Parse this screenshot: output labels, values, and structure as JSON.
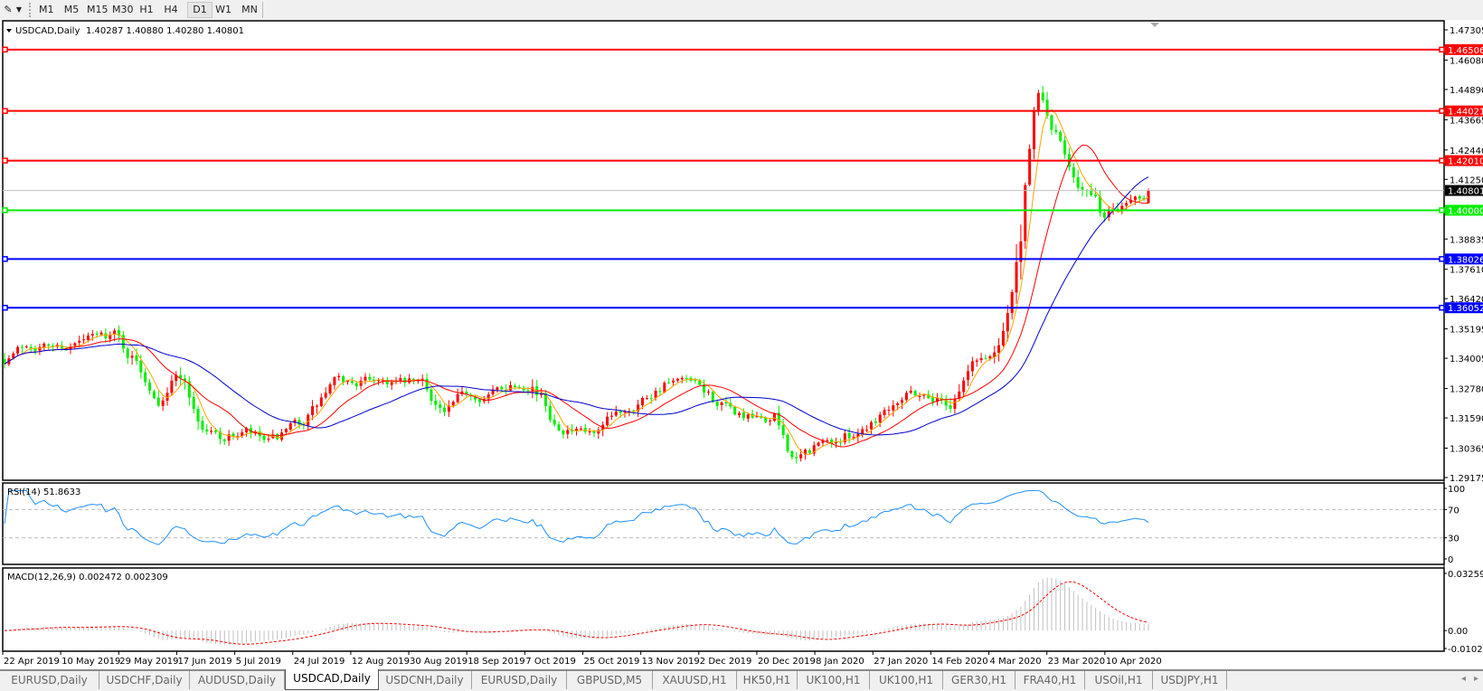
{
  "toolbar": {
    "icon": "drawing-tools-icon",
    "timeframes": [
      "M1",
      "M5",
      "M15",
      "M30",
      "H1",
      "H4",
      "D1",
      "W1",
      "MN"
    ],
    "active_timeframe": "D1"
  },
  "chart_header": {
    "symbol": "USDCAD,Daily",
    "ohlc": "1.40287 1.40880 1.40280 1.40801"
  },
  "rsi_header": "RSI(14) 51.8633",
  "macd_header": "MACD(12,26,9) 0.002472 0.002309",
  "tabs": [
    "EURUSD,Daily",
    "USDCHF,Daily",
    "AUDUSD,Daily",
    "USDCAD,Daily",
    "USDCNH,Daily",
    "EURUSD,Daily",
    "GBPUSD,M5",
    "XAUUSD,H1",
    "HK50,H1",
    "UK100,H1",
    "UK100,H1",
    "GER30,H1",
    "FRA40,H1",
    "USOil,H1",
    "USDJPY,H1"
  ],
  "active_tab": "USDCAD,Daily",
  "colors": {
    "bull_candle": "#ff0000",
    "bear_candle": "#00ee00",
    "ma_fast": "#ffa500",
    "ma_mid": "#ff0000",
    "ma_slow": "#0000cc",
    "rsi_line": "#1e90ff",
    "macd_hist": "#c0c0c0",
    "macd_signal": "#ff0000",
    "current_price": "#000000"
  },
  "chart_data": {
    "type": "candlestick",
    "symbol": "USDCAD",
    "timeframe": "Daily",
    "last_bar": {
      "open": 1.40287,
      "high": 1.4088,
      "low": 1.4028,
      "close": 1.40801
    },
    "weekly_close_approx": [
      {
        "week": "2019-04-22",
        "close": 1.34
      },
      {
        "week": "2019-04-29",
        "close": 1.346
      },
      {
        "week": "2019-05-06",
        "close": 1.345
      },
      {
        "week": "2019-05-13",
        "close": 1.345
      },
      {
        "week": "2019-05-20",
        "close": 1.348
      },
      {
        "week": "2019-05-27",
        "close": 1.35
      },
      {
        "week": "2019-06-03",
        "close": 1.338
      },
      {
        "week": "2019-06-10",
        "close": 1.325
      },
      {
        "week": "2019-06-17",
        "close": 1.335
      },
      {
        "week": "2019-06-24",
        "close": 1.312
      },
      {
        "week": "2019-07-01",
        "close": 1.308
      },
      {
        "week": "2019-07-08",
        "close": 1.31
      },
      {
        "week": "2019-07-15",
        "close": 1.305
      },
      {
        "week": "2019-07-22",
        "close": 1.31
      },
      {
        "week": "2019-07-29",
        "close": 1.318
      },
      {
        "week": "2019-08-05",
        "close": 1.33
      },
      {
        "week": "2019-08-12",
        "close": 1.33
      },
      {
        "week": "2019-08-19",
        "close": 1.332
      },
      {
        "week": "2019-08-26",
        "close": 1.33
      },
      {
        "week": "2019-09-02",
        "close": 1.33
      },
      {
        "week": "2019-09-09",
        "close": 1.318
      },
      {
        "week": "2019-09-16",
        "close": 1.325
      },
      {
        "week": "2019-09-23",
        "close": 1.325
      },
      {
        "week": "2019-09-30",
        "close": 1.33
      },
      {
        "week": "2019-10-07",
        "close": 1.33
      },
      {
        "week": "2019-10-14",
        "close": 1.315
      },
      {
        "week": "2019-10-21",
        "close": 1.31
      },
      {
        "week": "2019-10-28",
        "close": 1.308
      },
      {
        "week": "2019-11-04",
        "close": 1.318
      },
      {
        "week": "2019-11-11",
        "close": 1.324
      },
      {
        "week": "2019-11-18",
        "close": 1.33
      },
      {
        "week": "2019-11-25",
        "close": 1.33
      },
      {
        "week": "2019-12-02",
        "close": 1.325
      },
      {
        "week": "2019-12-09",
        "close": 1.318
      },
      {
        "week": "2019-12-16",
        "close": 1.315
      },
      {
        "week": "2019-12-23",
        "close": 1.315
      },
      {
        "week": "2019-12-30",
        "close": 1.298
      },
      {
        "week": "2020-01-06",
        "close": 1.305
      },
      {
        "week": "2020-01-13",
        "close": 1.307
      },
      {
        "week": "2020-01-20",
        "close": 1.312
      },
      {
        "week": "2020-01-27",
        "close": 1.32
      },
      {
        "week": "2020-02-03",
        "close": 1.328
      },
      {
        "week": "2020-02-10",
        "close": 1.325
      },
      {
        "week": "2020-02-17",
        "close": 1.322
      },
      {
        "week": "2020-02-24",
        "close": 1.338
      },
      {
        "week": "2020-03-02",
        "close": 1.342
      },
      {
        "week": "2020-03-09",
        "close": 1.375
      },
      {
        "week": "2020-03-16",
        "close": 1.445
      },
      {
        "week": "2020-03-23",
        "close": 1.425
      },
      {
        "week": "2020-03-30",
        "close": 1.41
      },
      {
        "week": "2020-04-06",
        "close": 1.397
      },
      {
        "week": "2020-04-13",
        "close": 1.405
      },
      {
        "week": "2020-04-20",
        "close": 1.408
      }
    ],
    "price_axis": {
      "min": 1.29175,
      "max": 1.47305,
      "ticks": [
        "1.47305",
        "1.46080",
        "1.44890",
        "1.43665",
        "1.42440",
        "1.41250",
        "1.38835",
        "1.37610",
        "1.36420",
        "1.35195",
        "1.34005",
        "1.32780",
        "1.31590",
        "1.30365",
        "1.29175"
      ]
    },
    "horizontal_lines": [
      {
        "price": "1.46506",
        "color": "#ff0000"
      },
      {
        "price": "1.44021",
        "color": "#ff0000"
      },
      {
        "price": "1.42010",
        "color": "#ff0000"
      },
      {
        "price": "1.40000",
        "color": "#00ee00"
      },
      {
        "price": "1.38026",
        "color": "#0000ff"
      },
      {
        "price": "1.36052",
        "color": "#0000ff"
      }
    ],
    "current_price": "1.40801",
    "rsi": {
      "period": 14,
      "value": 51.8633,
      "levels": [
        70,
        30
      ],
      "ticks": [
        "100",
        "70",
        "30",
        "0"
      ]
    },
    "macd": {
      "fast": 12,
      "slow": 26,
      "signal": 9,
      "main": 0.002472,
      "signal_value": 0.002309,
      "range": [
        -0.010227,
        0.032595
      ],
      "ticks": [
        "0.032595",
        "0.00",
        "-0.010227"
      ]
    },
    "date_ticks": [
      "22 Apr 2019",
      "10 May 2019",
      "29 May 2019",
      "17 Jun 2019",
      "5 Jul 2019",
      "24 Jul 2019",
      "12 Aug 2019",
      "30 Aug 2019",
      "18 Sep 2019",
      "7 Oct 2019",
      "25 Oct 2019",
      "13 Nov 2019",
      "2 Dec 2019",
      "20 Dec 2019",
      "8 Jan 2020",
      "27 Jan 2020",
      "14 Feb 2020",
      "4 Mar 2020",
      "23 Mar 2020",
      "10 Apr 2020"
    ]
  }
}
